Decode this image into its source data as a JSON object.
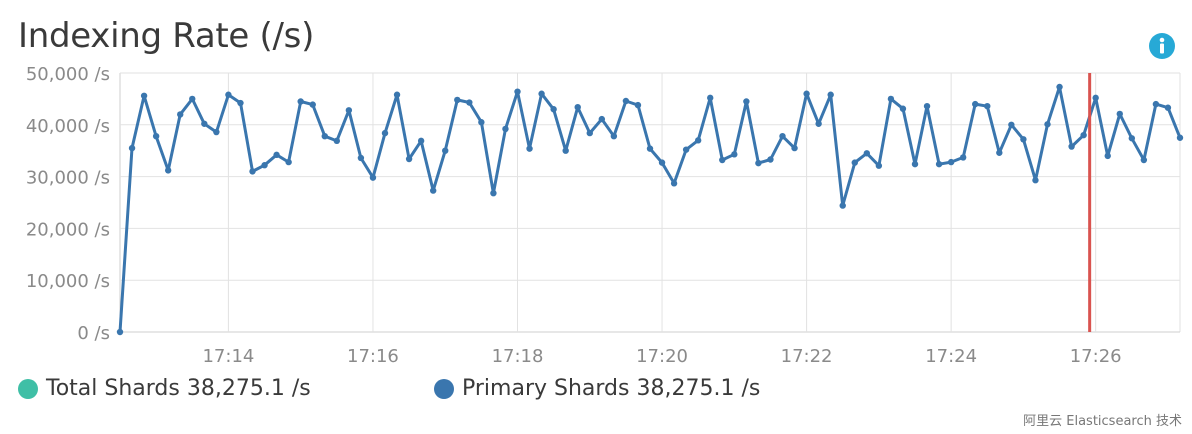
{
  "title": "Indexing Rate (/s)",
  "icons": {
    "info": "info-icon"
  },
  "colors": {
    "primary": "#3a76ae",
    "total": "#3fbfa6",
    "marker": "#d9534f",
    "grid": "#e2e2e2"
  },
  "legend": [
    {
      "name": "Total Shards",
      "value_text": "38,275.1 /s",
      "color": "#3fbfa6"
    },
    {
      "name": "Primary Shards",
      "value_text": "38,275.1 /s",
      "color": "#3a76ae"
    }
  ],
  "watermark": "阿里云 Elasticsearch 技术",
  "chart_data": {
    "type": "line",
    "title": "Indexing Rate (/s)",
    "ylim": [
      0,
      50000
    ],
    "yticks": [
      0,
      10000,
      20000,
      30000,
      40000,
      50000
    ],
    "ytick_labels": [
      "0 /s",
      "10,000 /s",
      "20,000 /s",
      "30,000 /s",
      "40,000 /s",
      "50,000 /s"
    ],
    "xlim": [
      "17:12:30",
      "17:27:10"
    ],
    "xticks": [
      "17:14",
      "17:16",
      "17:18",
      "17:20",
      "17:22",
      "17:24",
      "17:26"
    ],
    "marker_time": "17:25:55",
    "grid": true,
    "legend_position": "bottom",
    "series": [
      {
        "name": "Primary Shards",
        "points": [
          [
            "17:12:30",
            0
          ],
          [
            "17:12:40",
            35500
          ],
          [
            "17:12:50",
            45600
          ],
          [
            "17:13:00",
            37800
          ],
          [
            "17:13:10",
            31200
          ],
          [
            "17:13:20",
            42000
          ],
          [
            "17:13:30",
            45000
          ],
          [
            "17:13:40",
            40200
          ],
          [
            "17:13:50",
            38600
          ],
          [
            "17:14:00",
            45800
          ],
          [
            "17:14:10",
            44200
          ],
          [
            "17:14:20",
            31000
          ],
          [
            "17:14:30",
            32200
          ],
          [
            "17:14:40",
            34200
          ],
          [
            "17:14:50",
            32800
          ],
          [
            "17:15:00",
            44500
          ],
          [
            "17:15:10",
            43900
          ],
          [
            "17:15:20",
            37800
          ],
          [
            "17:15:30",
            36900
          ],
          [
            "17:15:40",
            42800
          ],
          [
            "17:15:50",
            33600
          ],
          [
            "17:16:00",
            29800
          ],
          [
            "17:16:10",
            38400
          ],
          [
            "17:16:20",
            45800
          ],
          [
            "17:16:30",
            33400
          ],
          [
            "17:16:40",
            36900
          ],
          [
            "17:16:50",
            27300
          ],
          [
            "17:17:00",
            35000
          ],
          [
            "17:17:10",
            44800
          ],
          [
            "17:17:20",
            44300
          ],
          [
            "17:17:30",
            40500
          ],
          [
            "17:17:40",
            26800
          ],
          [
            "17:17:50",
            39200
          ],
          [
            "17:18:00",
            46400
          ],
          [
            "17:18:10",
            35400
          ],
          [
            "17:18:20",
            46000
          ],
          [
            "17:18:30",
            43000
          ],
          [
            "17:18:40",
            35000
          ],
          [
            "17:18:50",
            43400
          ],
          [
            "17:19:00",
            38400
          ],
          [
            "17:19:10",
            41100
          ],
          [
            "17:19:20",
            37800
          ],
          [
            "17:19:30",
            44600
          ],
          [
            "17:19:40",
            43800
          ],
          [
            "17:19:50",
            35400
          ],
          [
            "17:20:00",
            32700
          ],
          [
            "17:20:10",
            28700
          ],
          [
            "17:20:20",
            35200
          ],
          [
            "17:20:30",
            37000
          ],
          [
            "17:20:40",
            45200
          ],
          [
            "17:20:50",
            33200
          ],
          [
            "17:21:00",
            34300
          ],
          [
            "17:21:10",
            44500
          ],
          [
            "17:21:20",
            32600
          ],
          [
            "17:21:30",
            33300
          ],
          [
            "17:21:40",
            37800
          ],
          [
            "17:21:50",
            35500
          ],
          [
            "17:22:00",
            46000
          ],
          [
            "17:22:10",
            40200
          ],
          [
            "17:22:20",
            45800
          ],
          [
            "17:22:30",
            24400
          ],
          [
            "17:22:40",
            32700
          ],
          [
            "17:22:50",
            34500
          ],
          [
            "17:23:00",
            32100
          ],
          [
            "17:23:10",
            45000
          ],
          [
            "17:23:20",
            43100
          ],
          [
            "17:23:30",
            32400
          ],
          [
            "17:23:40",
            43600
          ],
          [
            "17:23:50",
            32400
          ],
          [
            "17:24:00",
            32800
          ],
          [
            "17:24:10",
            33700
          ],
          [
            "17:24:20",
            44000
          ],
          [
            "17:24:30",
            43600
          ],
          [
            "17:24:40",
            34600
          ],
          [
            "17:24:50",
            40000
          ],
          [
            "17:25:00",
            37200
          ],
          [
            "17:25:10",
            29300
          ],
          [
            "17:25:20",
            40100
          ],
          [
            "17:25:30",
            47300
          ],
          [
            "17:25:40",
            35800
          ],
          [
            "17:25:50",
            38000
          ],
          [
            "17:26:00",
            45200
          ],
          [
            "17:26:10",
            34000
          ],
          [
            "17:26:20",
            42100
          ],
          [
            "17:26:30",
            37400
          ],
          [
            "17:26:40",
            33200
          ],
          [
            "17:26:50",
            44000
          ],
          [
            "17:27:00",
            43300
          ],
          [
            "17:27:10",
            37500
          ]
        ]
      }
    ]
  }
}
